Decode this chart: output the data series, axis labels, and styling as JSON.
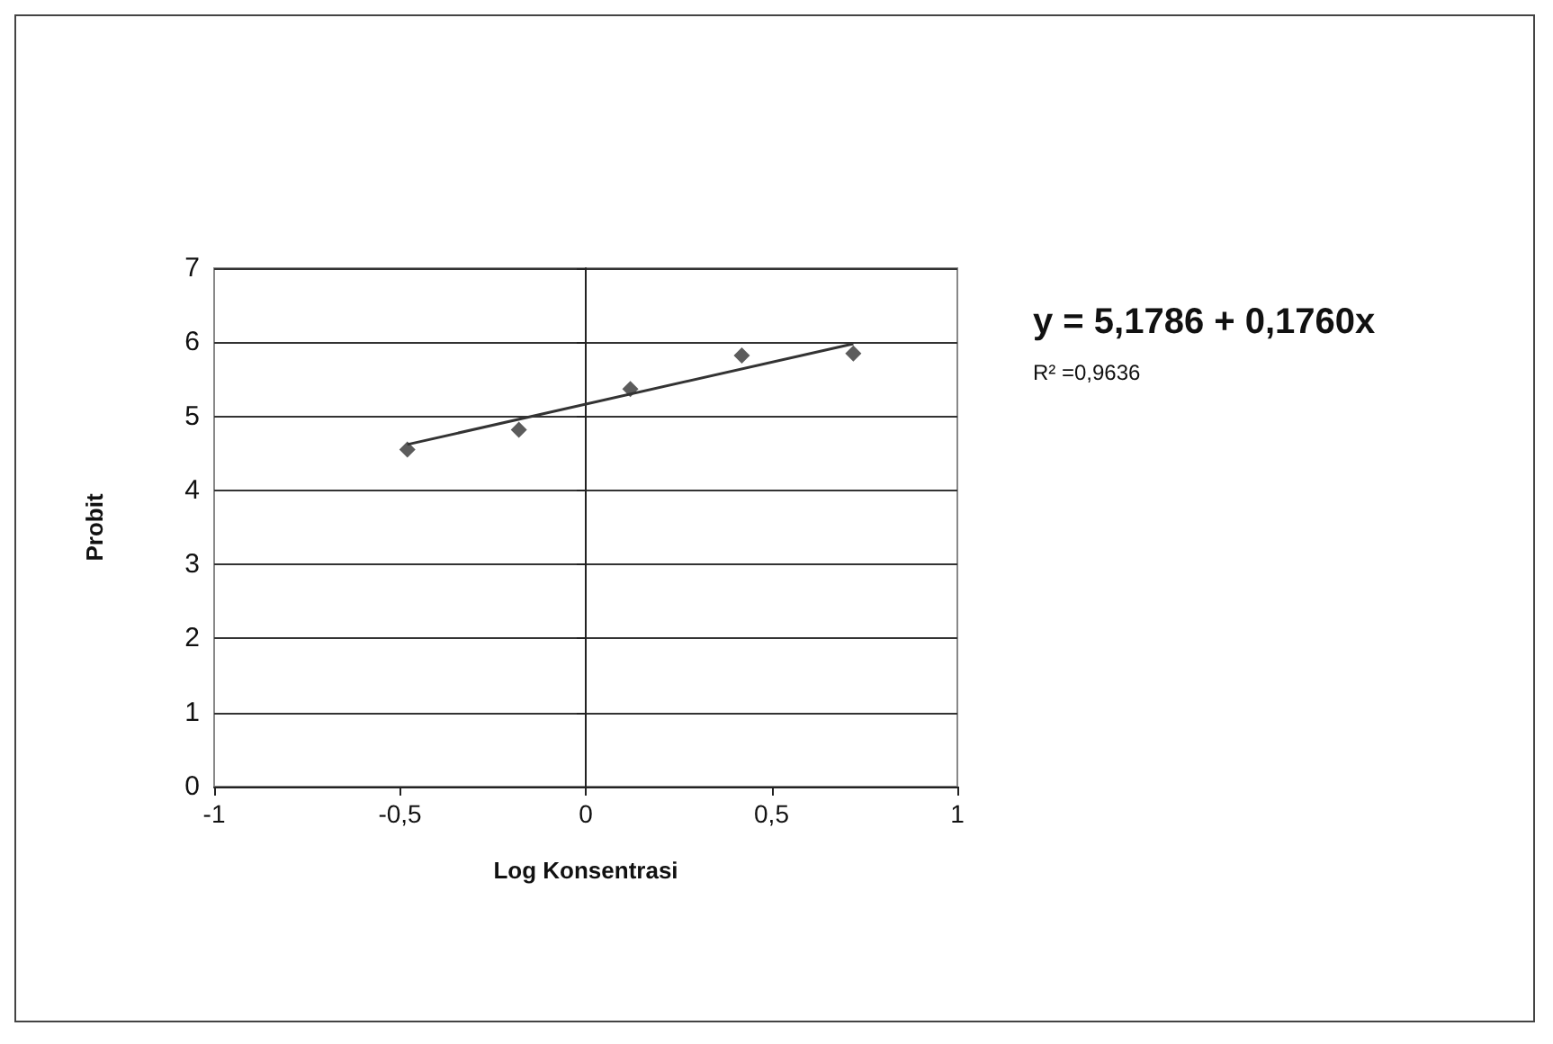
{
  "chart_data": {
    "type": "scatter",
    "xlabel": "Log Konsentrasi",
    "ylabel": "Probit",
    "xlim": [
      -1,
      1
    ],
    "xticks": [
      -1,
      {
        "value": -0.5,
        "label": "-0,5"
      },
      0,
      {
        "value": 0.5,
        "label": "0,5"
      },
      1
    ],
    "ylim": [
      0,
      7
    ],
    "yticks": [
      0,
      1,
      2,
      3,
      4,
      5,
      6,
      7
    ],
    "grid": "y",
    "marker": "diamond",
    "series": [
      {
        "color": "#333333",
        "x": [
          -0.48,
          -0.18,
          0.12,
          0.42,
          0.72
        ],
        "values": [
          4.55,
          4.82,
          5.37,
          5.82,
          5.85
        ]
      },
      {
        "type": "line",
        "color": "#333333",
        "marker": "none",
        "line_style": "solid",
        "x": [
          -0.48,
          0.72
        ],
        "values": [
          4.62,
          5.98
        ]
      }
    ],
    "annotations": [
      "y = 5,1786 + 0,1760x",
      "R² =0,9636"
    ]
  }
}
